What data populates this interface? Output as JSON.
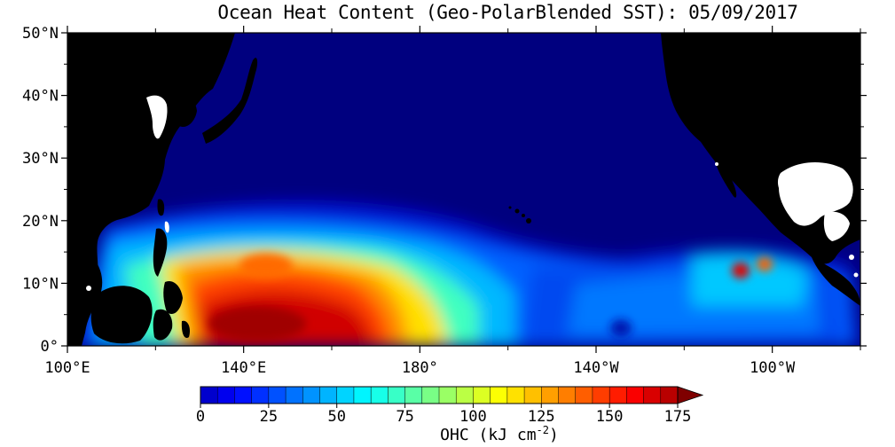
{
  "map": {
    "title": "Ocean Heat Content (Geo-PolarBlended SST): 05/09/2017",
    "lat_labels": [
      "50°N",
      "40°N",
      "30°N",
      "20°N",
      "10°N",
      "0°"
    ],
    "lon_labels": [
      "100°E",
      "140°E",
      "180°",
      "140°W",
      "100°W"
    ],
    "extent": {
      "lon_min": 100,
      "lon_max": 280,
      "lat_min": 0,
      "lat_max": 50
    },
    "colors": {
      "land": "#000000",
      "missing": "#ffffff",
      "ocean_deep": "#00007f"
    }
  },
  "colorbar": {
    "label_prefix": "OHC (kJ cm",
    "label_exp": "-2",
    "label_suffix": ")",
    "ticks": [
      "0",
      "25",
      "50",
      "75",
      "100",
      "125",
      "150",
      "175"
    ],
    "min": 0,
    "max": 175,
    "step": 6.25,
    "extend": "max",
    "colormap": "jet"
  },
  "chart_data": {
    "type": "heatmap",
    "title": "Ocean Heat Content (Geo-PolarBlended SST): 05/09/2017",
    "variable": "OHC (kJ cm-2)",
    "x_ticks": [
      "100°E",
      "140°E",
      "180°",
      "140°W",
      "100°W"
    ],
    "y_ticks": [
      "50°N",
      "40°N",
      "30°N",
      "20°N",
      "10°N",
      "0°"
    ],
    "color_range": [
      0,
      175
    ]
  }
}
